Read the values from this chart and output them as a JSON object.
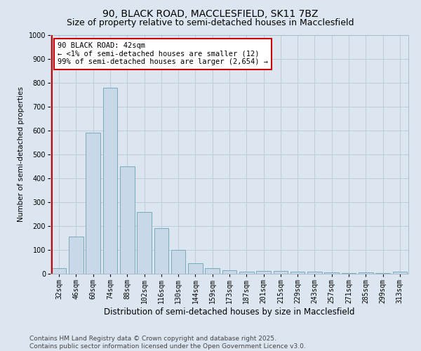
{
  "title1": "90, BLACK ROAD, MACCLESFIELD, SK11 7BZ",
  "title2": "Size of property relative to semi-detached houses in Macclesfield",
  "xlabel": "Distribution of semi-detached houses by size in Macclesfield",
  "ylabel": "Number of semi-detached properties",
  "categories": [
    "32sqm",
    "46sqm",
    "60sqm",
    "74sqm",
    "88sqm",
    "102sqm",
    "116sqm",
    "130sqm",
    "144sqm",
    "159sqm",
    "173sqm",
    "187sqm",
    "201sqm",
    "215sqm",
    "229sqm",
    "243sqm",
    "257sqm",
    "271sqm",
    "285sqm",
    "299sqm",
    "313sqm"
  ],
  "values": [
    25,
    155,
    590,
    780,
    450,
    260,
    190,
    100,
    45,
    25,
    15,
    10,
    12,
    12,
    10,
    8,
    5,
    3,
    5,
    3,
    10
  ],
  "bar_color": "#c8d8e8",
  "bar_edge_color": "#7aaabb",
  "highlight_edge_color": "#cc0000",
  "annotation_text": "90 BLACK ROAD: 42sqm\n← <1% of semi-detached houses are smaller (12)\n99% of semi-detached houses are larger (2,654) →",
  "annotation_box_color": "white",
  "annotation_box_edge_color": "#cc0000",
  "ylim": [
    0,
    1000
  ],
  "yticks": [
    0,
    100,
    200,
    300,
    400,
    500,
    600,
    700,
    800,
    900,
    1000
  ],
  "grid_color": "#c0ccd8",
  "background_color": "#dce6f0",
  "footer_text": "Contains HM Land Registry data © Crown copyright and database right 2025.\nContains public sector information licensed under the Open Government Licence v3.0.",
  "title1_fontsize": 10,
  "title2_fontsize": 9,
  "xlabel_fontsize": 8.5,
  "ylabel_fontsize": 7.5,
  "tick_fontsize": 7,
  "footer_fontsize": 6.5,
  "annot_fontsize": 7.5
}
